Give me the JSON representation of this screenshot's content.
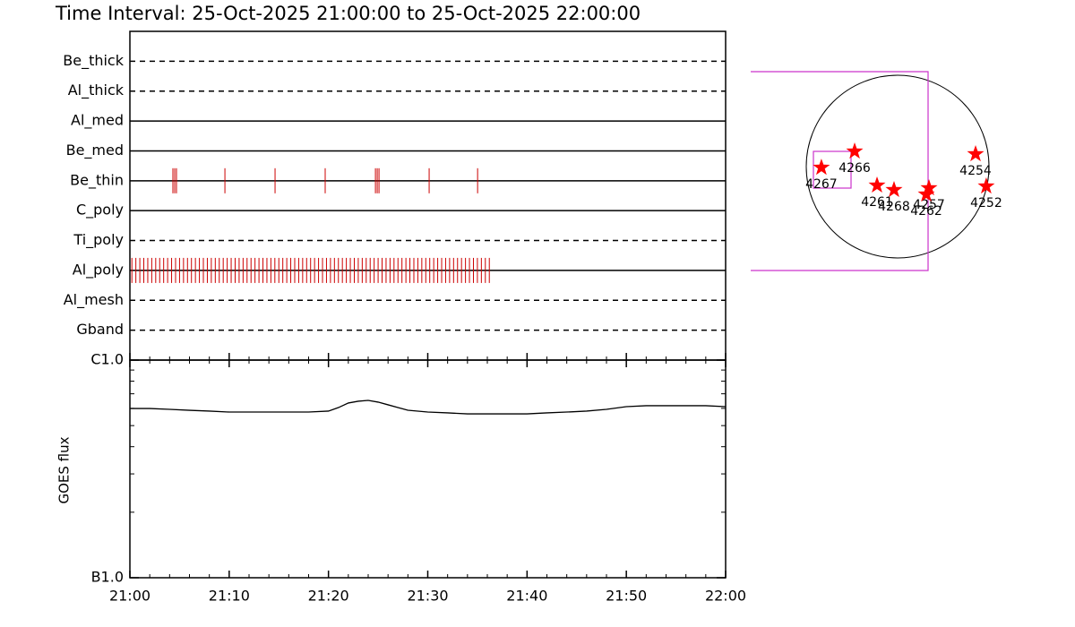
{
  "chart_data": [
    {
      "type": "timeline",
      "title": "Time Interval: 25-Oct-2025 21:00:00 to 25-Oct-2025 22:00:00",
      "xlim": [
        0,
        60
      ],
      "xticks": [
        {
          "value": 0,
          "label": "21:00"
        },
        {
          "value": 10,
          "label": "21:10"
        },
        {
          "value": 20,
          "label": "21:20"
        },
        {
          "value": 30,
          "label": "21:30"
        },
        {
          "value": 40,
          "label": "21:40"
        },
        {
          "value": 50,
          "label": "21:50"
        },
        {
          "value": 60,
          "label": "22:00"
        }
      ],
      "xminor": [
        2,
        4,
        6,
        8,
        12,
        14,
        16,
        18,
        22,
        24,
        26,
        28,
        32,
        34,
        36,
        38,
        42,
        44,
        46,
        48,
        52,
        54,
        56,
        58
      ],
      "color": "#cc0000",
      "series": [
        {
          "name": "Be_thick",
          "style": "dashed",
          "values": []
        },
        {
          "name": "Al_thick",
          "style": "dashed",
          "values": []
        },
        {
          "name": "Al_med",
          "style": "solid",
          "values": []
        },
        {
          "name": "Be_med",
          "style": "solid",
          "values": []
        },
        {
          "name": "Be_thin",
          "style": "solid",
          "values": [
            4.33,
            4.51,
            4.69,
            9.57,
            14.62,
            19.67,
            24.73,
            24.91,
            25.09,
            30.14,
            35.02
          ]
        },
        {
          "name": "C_poly",
          "style": "solid",
          "values": []
        },
        {
          "name": "Ti_poly",
          "style": "dashed",
          "values": []
        },
        {
          "name": "Al_poly",
          "style": "solid",
          "values": [
            0.2,
            0.6,
            1.0,
            1.4,
            1.8,
            2.2,
            2.6,
            3.0,
            3.4,
            3.8,
            4.2,
            4.6,
            5.0,
            5.4,
            5.8,
            6.2,
            6.6,
            7.0,
            7.4,
            7.8,
            8.2,
            8.6,
            9.0,
            9.4,
            9.8,
            10.2,
            10.6,
            11.0,
            11.4,
            11.8,
            12.2,
            12.6,
            13.0,
            13.4,
            13.8,
            14.2,
            14.6,
            15.0,
            15.4,
            15.8,
            16.2,
            16.6,
            17.0,
            17.4,
            17.8,
            18.2,
            18.6,
            19.0,
            19.4,
            19.8,
            20.2,
            20.6,
            21.0,
            21.4,
            21.8,
            22.2,
            22.6,
            23.0,
            23.4,
            23.8,
            24.2,
            24.6,
            25.0,
            25.4,
            25.8,
            26.2,
            26.6,
            27.0,
            27.4,
            27.8,
            28.2,
            28.6,
            29.0,
            29.4,
            29.8,
            30.2,
            30.6,
            31.0,
            31.4,
            31.8,
            32.2,
            32.6,
            33.0,
            33.4,
            33.8,
            34.2,
            34.6,
            35.0,
            35.4,
            35.8,
            36.2
          ]
        },
        {
          "name": "Al_mesh",
          "style": "dashed",
          "values": []
        },
        {
          "name": "Gband",
          "style": "dashed",
          "values": []
        }
      ]
    },
    {
      "type": "line",
      "ylabel": "GOES flux",
      "log": true,
      "ylim": [
        1e-07,
        1e-06
      ],
      "yticks": [
        {
          "value": 1e-07,
          "label": "B1.0"
        },
        {
          "value": 1e-06,
          "label": "C1.0"
        }
      ],
      "yminor": [
        2e-07,
        3e-07,
        4e-07,
        5e-07,
        6e-07,
        7e-07,
        8e-07,
        9e-07
      ],
      "color": "#000000",
      "x": [
        0,
        2,
        4,
        6,
        8,
        10,
        12,
        14,
        16,
        18,
        20,
        21,
        22,
        23,
        24,
        25,
        26,
        27,
        28,
        30,
        32,
        34,
        36,
        38,
        40,
        42,
        44,
        46,
        48,
        50,
        52,
        54,
        56,
        58,
        60
      ],
      "values": [
        5.99e-07,
        5.99e-07,
        5.94e-07,
        5.88e-07,
        5.83e-07,
        5.77e-07,
        5.77e-07,
        5.77e-07,
        5.77e-07,
        5.77e-07,
        5.83e-07,
        6.05e-07,
        6.35e-07,
        6.47e-07,
        6.53e-07,
        6.41e-07,
        6.23e-07,
        6.05e-07,
        5.88e-07,
        5.77e-07,
        5.72e-07,
        5.66e-07,
        5.66e-07,
        5.66e-07,
        5.66e-07,
        5.72e-07,
        5.77e-07,
        5.83e-07,
        5.94e-07,
        6.11e-07,
        6.17e-07,
        6.17e-07,
        6.17e-07,
        6.17e-07,
        6.11e-07
      ]
    },
    {
      "type": "scatter",
      "xlim": [
        -1100,
        1100
      ],
      "ylim": [
        -1100,
        1100
      ],
      "color": "#ff0000",
      "labels": [
        "4267",
        "4266",
        "4261",
        "4268",
        "4257",
        "4262",
        "4254",
        "4252"
      ],
      "x": [
        -800,
        -451,
        -216,
        -38,
        329,
        301,
        818,
        930
      ],
      "y": [
        -10,
        160,
        -197,
        -244,
        -226,
        -291,
        132,
        -207
      ]
    }
  ]
}
